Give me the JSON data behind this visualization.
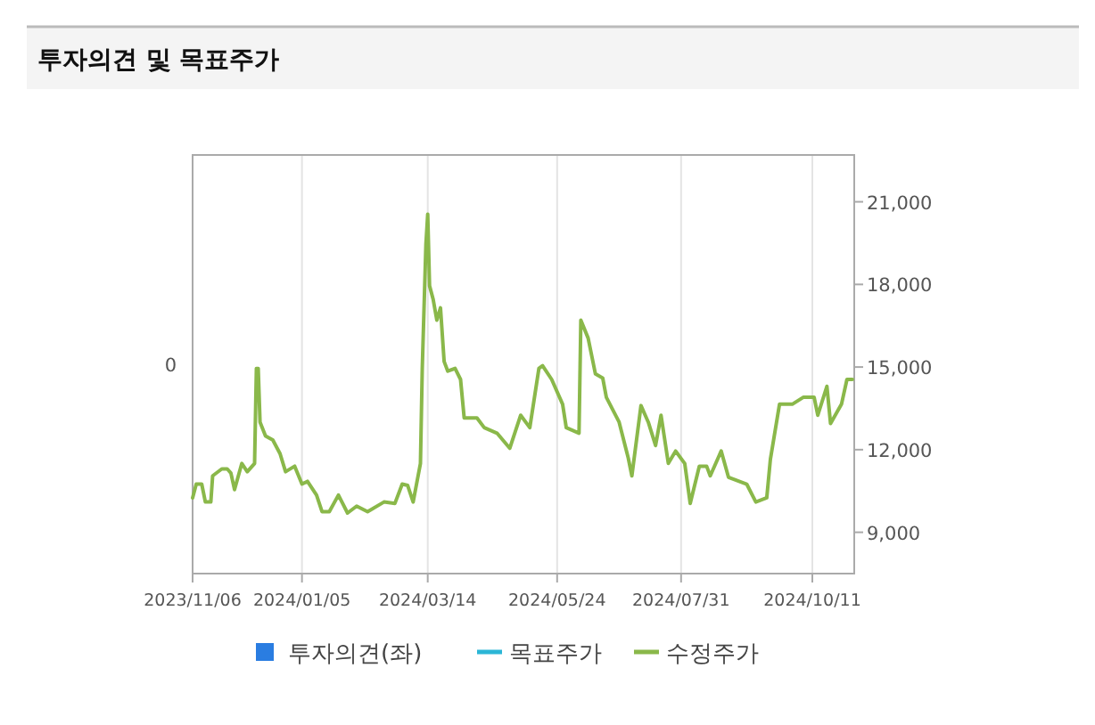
{
  "chart_data": {
    "type": "line",
    "title": "투자의견 및 목표주가",
    "xlim": [
      "2023-11-06",
      "2024-11-03"
    ],
    "xticks": [
      {
        "value": "2023-11-06",
        "label": "2023/11/06"
      },
      {
        "value": "2024-01-05",
        "label": "2024/01/05"
      },
      {
        "value": "2024-03-14",
        "label": "2024/03/14"
      },
      {
        "value": "2024-05-24",
        "label": "2024/05/24"
      },
      {
        "value": "2024-07-31",
        "label": "2024/07/31"
      },
      {
        "value": "2024-10-11",
        "label": "2024/10/11"
      }
    ],
    "annotations": [
      "0"
    ],
    "y2lim": [
      7500,
      22700
    ],
    "y2ticks": [
      {
        "value": 9000,
        "label": "9,000"
      },
      {
        "value": 12000,
        "label": "12,000"
      },
      {
        "value": 15000,
        "label": "15,000"
      },
      {
        "value": 18000,
        "label": "18,000"
      },
      {
        "value": 21000,
        "label": "21,000"
      }
    ],
    "grid": "x",
    "legend": "bottom",
    "series": [
      {
        "name": "투자의견(좌)",
        "type": "bar",
        "color": "#2a7de1"
      },
      {
        "name": "목표주가",
        "type": "line",
        "axis": "y2",
        "color": "#2bb6d6"
      },
      {
        "name": "수정주가",
        "axis": "y2",
        "color": "#8ab84a",
        "x": [
          "2023-11-06",
          "2023-11-08",
          "2023-11-11",
          "2023-11-13",
          "2023-11-16",
          "2023-11-17",
          "2023-11-22",
          "2023-11-25",
          "2023-11-27",
          "2023-11-29",
          "2023-12-03",
          "2023-12-06",
          "2023-12-10",
          "2023-12-11",
          "2023-12-12",
          "2023-12-13",
          "2023-12-16",
          "2023-12-20",
          "2023-12-24",
          "2023-12-27",
          "2024-01-01",
          "2024-01-05",
          "2024-01-08",
          "2024-01-13",
          "2024-01-16",
          "2024-01-20",
          "2024-01-25",
          "2024-01-30",
          "2024-02-04",
          "2024-02-10",
          "2024-02-19",
          "2024-02-25",
          "2024-02-29",
          "2024-03-03",
          "2024-03-06",
          "2024-03-10",
          "2024-03-11",
          "2024-03-13",
          "2024-03-14",
          "2024-03-15",
          "2024-03-17",
          "2024-03-19",
          "2024-03-21",
          "2024-03-23",
          "2024-03-25",
          "2024-03-29",
          "2024-04-01",
          "2024-04-03",
          "2024-04-10",
          "2024-04-14",
          "2024-04-21",
          "2024-04-28",
          "2024-05-04",
          "2024-05-09",
          "2024-05-14",
          "2024-05-16",
          "2024-05-21",
          "2024-05-27",
          "2024-05-29",
          "2024-06-05",
          "2024-06-06",
          "2024-06-10",
          "2024-06-14",
          "2024-06-18",
          "2024-06-20",
          "2024-06-27",
          "2024-07-02",
          "2024-07-04",
          "2024-07-09",
          "2024-07-13",
          "2024-07-17",
          "2024-07-20",
          "2024-07-24",
          "2024-07-28",
          "2024-08-02",
          "2024-08-05",
          "2024-08-10",
          "2024-08-14",
          "2024-08-16",
          "2024-08-22",
          "2024-08-26",
          "2024-09-05",
          "2024-09-10",
          "2024-09-16",
          "2024-09-18",
          "2024-09-23",
          "2024-09-30",
          "2024-10-06",
          "2024-10-12",
          "2024-10-14",
          "2024-10-19",
          "2024-10-21",
          "2024-10-27",
          "2024-10-30",
          "2024-11-02"
        ],
        "values": [
          10250,
          10750,
          10750,
          10100,
          10100,
          11050,
          11300,
          11300,
          11150,
          10550,
          11500,
          11200,
          11500,
          14950,
          14950,
          13000,
          12500,
          12350,
          11850,
          11200,
          11400,
          10750,
          10850,
          10350,
          9750,
          9750,
          10350,
          9700,
          9950,
          9750,
          10100,
          10050,
          10750,
          10700,
          10100,
          11500,
          14950,
          19450,
          20550,
          17950,
          17450,
          16700,
          17150,
          15200,
          14850,
          14950,
          14550,
          13150,
          13150,
          12800,
          12600,
          12050,
          13250,
          12800,
          14950,
          15050,
          14550,
          13650,
          12800,
          12600,
          16700,
          16050,
          14750,
          14600,
          13900,
          13000,
          11700,
          11050,
          13600,
          13000,
          12150,
          13250,
          11500,
          11950,
          11500,
          10050,
          11400,
          11400,
          11050,
          11950,
          11000,
          10750,
          10100,
          10250,
          11650,
          13650,
          13650,
          13900,
          13900,
          13250,
          14300,
          12950,
          13650,
          14550,
          14550
        ]
      }
    ]
  }
}
